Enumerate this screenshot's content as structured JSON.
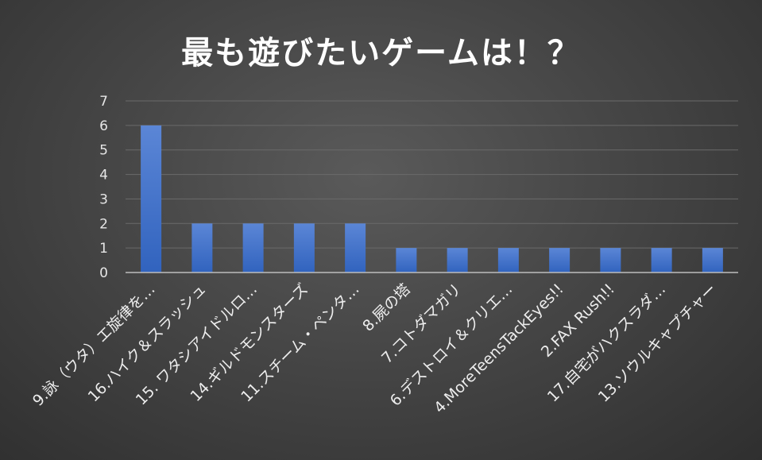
{
  "chart_data": {
    "type": "bar",
    "title": "最も遊びたいゲームは！？",
    "categories": [
      "9.詠（ウタ）エ旋律を…",
      "16.ハイク＆スラッシュ",
      "15. ワタシアイドルロ…",
      "14.ギルドモンスターズ",
      "11.スチーム・ペンタ…",
      "8.屍の塔",
      "7.コトダマガリ",
      "6.デストロイ＆クリエ…",
      "4.MoreTeensTackEyes!!",
      "2.FAX Rush!!",
      "17.自宅がハクスラダ…",
      "13.ソウルキャプチャー"
    ],
    "values": [
      6,
      2,
      2,
      2,
      2,
      1,
      1,
      1,
      1,
      1,
      1,
      1
    ],
    "ylim": [
      0,
      7
    ],
    "yticks": [
      0,
      1,
      2,
      3,
      4,
      5,
      6,
      7
    ],
    "xlabel": "",
    "ylabel": "",
    "grid": true,
    "legend": "none",
    "colors": {
      "bar_top": "#5b86d6",
      "bar_bottom": "#3163be",
      "grid": "#6a6a6a",
      "axis": "#bdbdbd"
    }
  }
}
